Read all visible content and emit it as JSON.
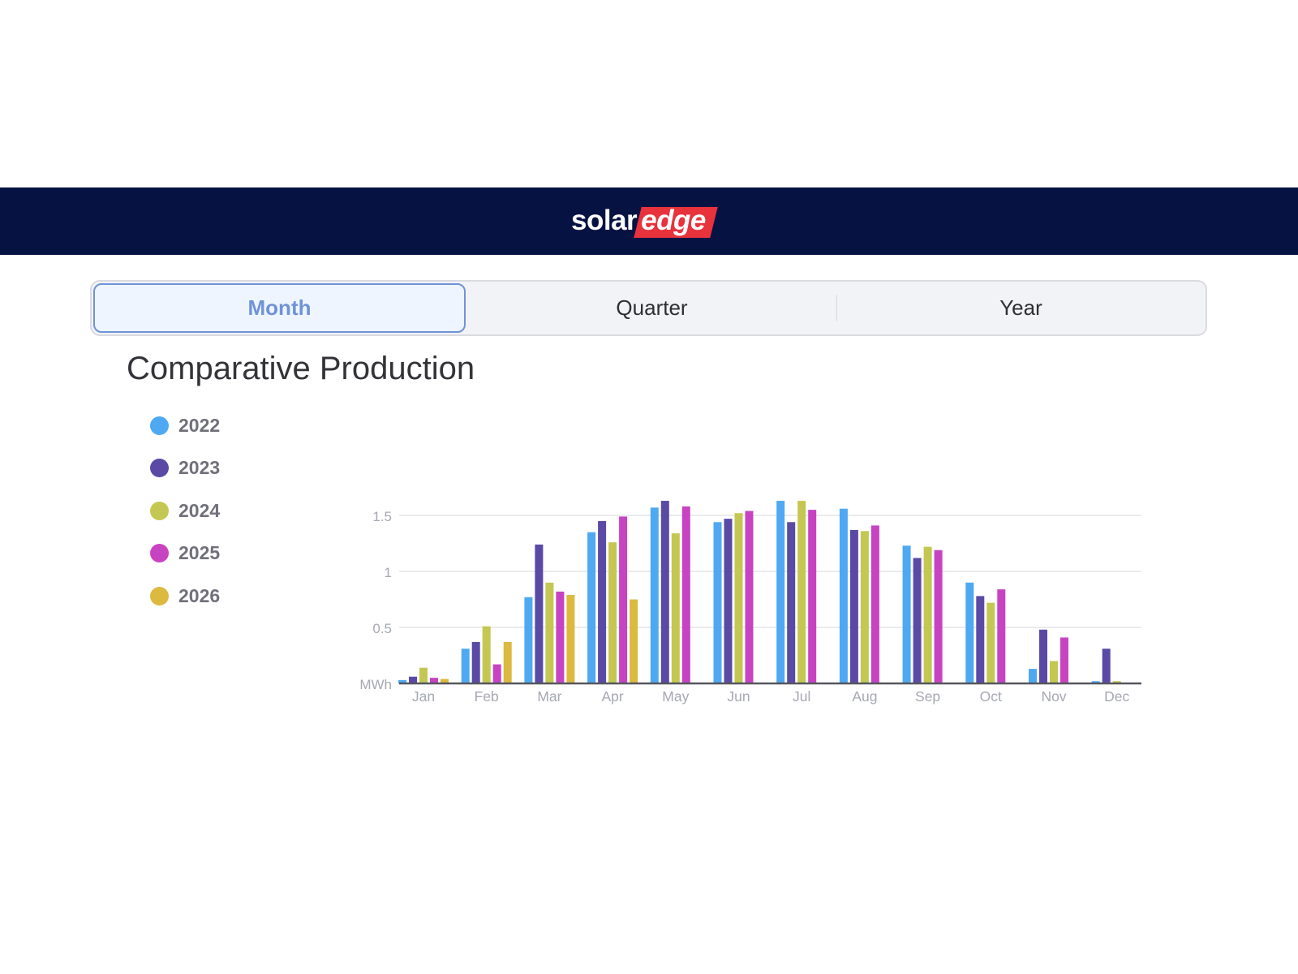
{
  "brand": {
    "word1": "solar",
    "word2": "edge"
  },
  "tabs": [
    {
      "label": "Month",
      "active": true
    },
    {
      "label": "Quarter",
      "active": false
    },
    {
      "label": "Year",
      "active": false
    }
  ],
  "page_title": "Comparative Production",
  "colors": {
    "header_bg": "#061242",
    "brand_red": "#e8323c",
    "accent": "#6f93d9"
  },
  "chart_data": {
    "type": "bar",
    "title": "Comparative Production",
    "ylabel": "MWh",
    "ylim": [
      0,
      1.5
    ],
    "yticks": [
      {
        "value": 0,
        "label": "MWh"
      },
      {
        "value": 0.5,
        "label": "0.5"
      },
      {
        "value": 1,
        "label": "1"
      },
      {
        "value": 1.5,
        "label": "1.5"
      }
    ],
    "grid": true,
    "legend_position": "left",
    "categories": [
      "Jan",
      "Feb",
      "Mar",
      "Apr",
      "May",
      "Jun",
      "Jul",
      "Aug",
      "Sep",
      "Oct",
      "Nov",
      "Dec"
    ],
    "series": [
      {
        "name": "2022",
        "color": "#4ea9f2",
        "values": [
          0.03,
          0.31,
          0.77,
          1.35,
          1.57,
          1.44,
          1.63,
          1.56,
          1.23,
          0.9,
          0.13,
          0.02
        ]
      },
      {
        "name": "2023",
        "color": "#5a4aa6",
        "values": [
          0.06,
          0.37,
          1.24,
          1.45,
          1.63,
          1.47,
          1.44,
          1.37,
          1.12,
          0.78,
          0.48,
          0.31
        ]
      },
      {
        "name": "2024",
        "color": "#c4c752",
        "values": [
          0.14,
          0.51,
          0.9,
          1.26,
          1.34,
          1.52,
          1.63,
          1.36,
          1.22,
          0.72,
          0.2,
          0.02
        ]
      },
      {
        "name": "2025",
        "color": "#c843c2",
        "values": [
          0.05,
          0.17,
          0.82,
          1.49,
          1.58,
          1.54,
          1.55,
          1.41,
          1.19,
          0.84,
          0.41,
          0
        ]
      },
      {
        "name": "2026",
        "color": "#dcb93f",
        "values": [
          0.04,
          0.37,
          0.79,
          0.75,
          0,
          0,
          0,
          0,
          0,
          0,
          0,
          0
        ]
      }
    ]
  }
}
